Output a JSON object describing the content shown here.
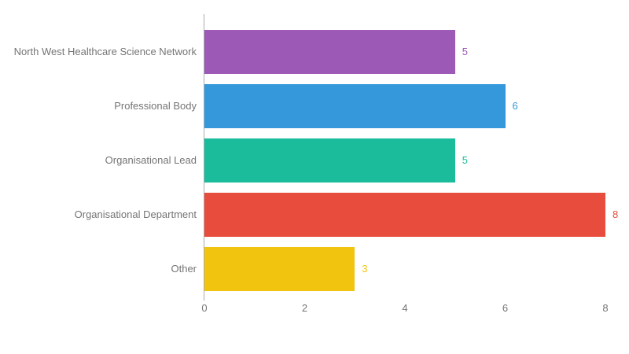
{
  "chart": {
    "background": "#ffffff",
    "text_color": "#757575",
    "axis_line_color": "#ababab"
  },
  "chart_data": {
    "type": "bar",
    "orientation": "horizontal",
    "title": "",
    "xlabel": "",
    "ylabel": "",
    "categories": [
      "North West Healthcare Science Network",
      "Professional Body",
      "Organisational Lead",
      "Organisational Department",
      "Other"
    ],
    "values": [
      5,
      6,
      5,
      8,
      3
    ],
    "bar_colors": [
      "#9c59b6",
      "#3498db",
      "#1abc9c",
      "#e74c3c",
      "#f1c40f"
    ],
    "value_labels_shown": true,
    "x_ticks": [
      0,
      2,
      4,
      6,
      8
    ],
    "xlim": [
      0,
      8
    ],
    "grid": false,
    "legend_position": "none"
  }
}
